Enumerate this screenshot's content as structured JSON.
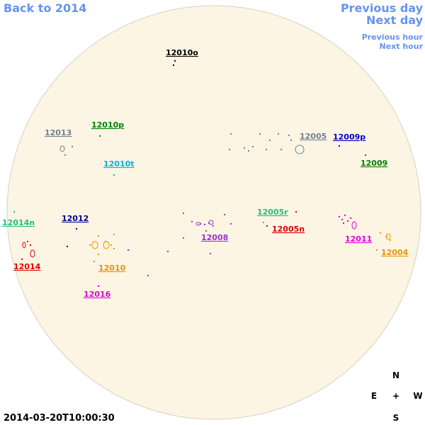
{
  "navigation": {
    "back": "Back to 2014",
    "previous_day": "Previous day",
    "next_day": "Next day",
    "previous_hour": "Previous hour",
    "next_hour": "Next hour"
  },
  "regions": [
    {
      "label": "12010o",
      "color": "#000000"
    },
    {
      "label": "12013",
      "color": "#708090"
    },
    {
      "label": "12010p",
      "color": "#008000"
    },
    {
      "label": "12010t",
      "color": "#00b0f0"
    },
    {
      "label": "12005",
      "color": "#708090"
    },
    {
      "label": "12009p",
      "color": "#0000cd"
    },
    {
      "label": "12009",
      "color": "#008000"
    },
    {
      "label": "12014n",
      "color": "#20c080"
    },
    {
      "label": "12012",
      "color": "#00008b"
    },
    {
      "label": "12005r",
      "color": "#20c080"
    },
    {
      "label": "12005n",
      "color": "#dd0000"
    },
    {
      "label": "12008",
      "color": "#9932cc"
    },
    {
      "label": "12011",
      "color": "#e000e0"
    },
    {
      "label": "12004",
      "color": "#e69500"
    },
    {
      "label": "12014",
      "color": "#dd0000"
    },
    {
      "label": "12010",
      "color": "#e69500"
    },
    {
      "label": "12016",
      "color": "#e000e0"
    }
  ],
  "timestamp": "2014-03-20T10:00:30",
  "compass": {
    "north": "N",
    "east": "E",
    "center": "+",
    "west": "W",
    "south": "S"
  }
}
